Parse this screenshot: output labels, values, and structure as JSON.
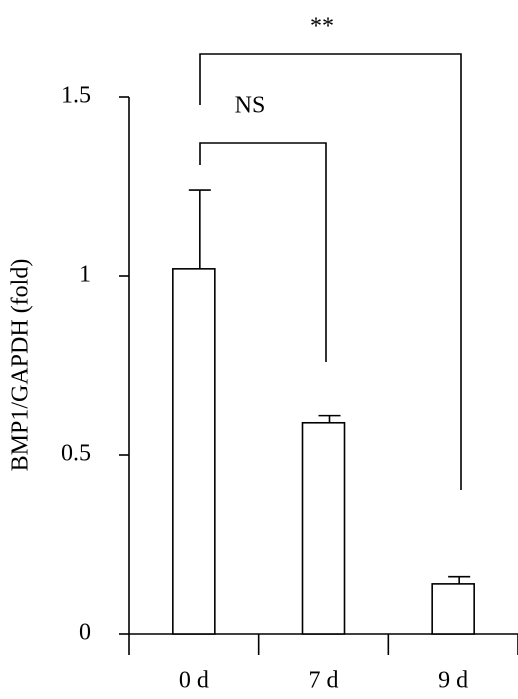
{
  "chart_data": {
    "type": "bar",
    "y_label": "BMP1/GAPDH (fold)",
    "categories": [
      "0 d",
      "7 d",
      "9 d"
    ],
    "values": [
      1.02,
      0.59,
      0.14
    ],
    "errors": [
      0.22,
      0.02,
      0.02
    ],
    "color": "#ffffff",
    "ylim": [
      0,
      1.5
    ],
    "yticks": [
      0,
      0.5,
      1,
      1.5
    ],
    "annotations": [
      "NS",
      "**"
    ]
  }
}
